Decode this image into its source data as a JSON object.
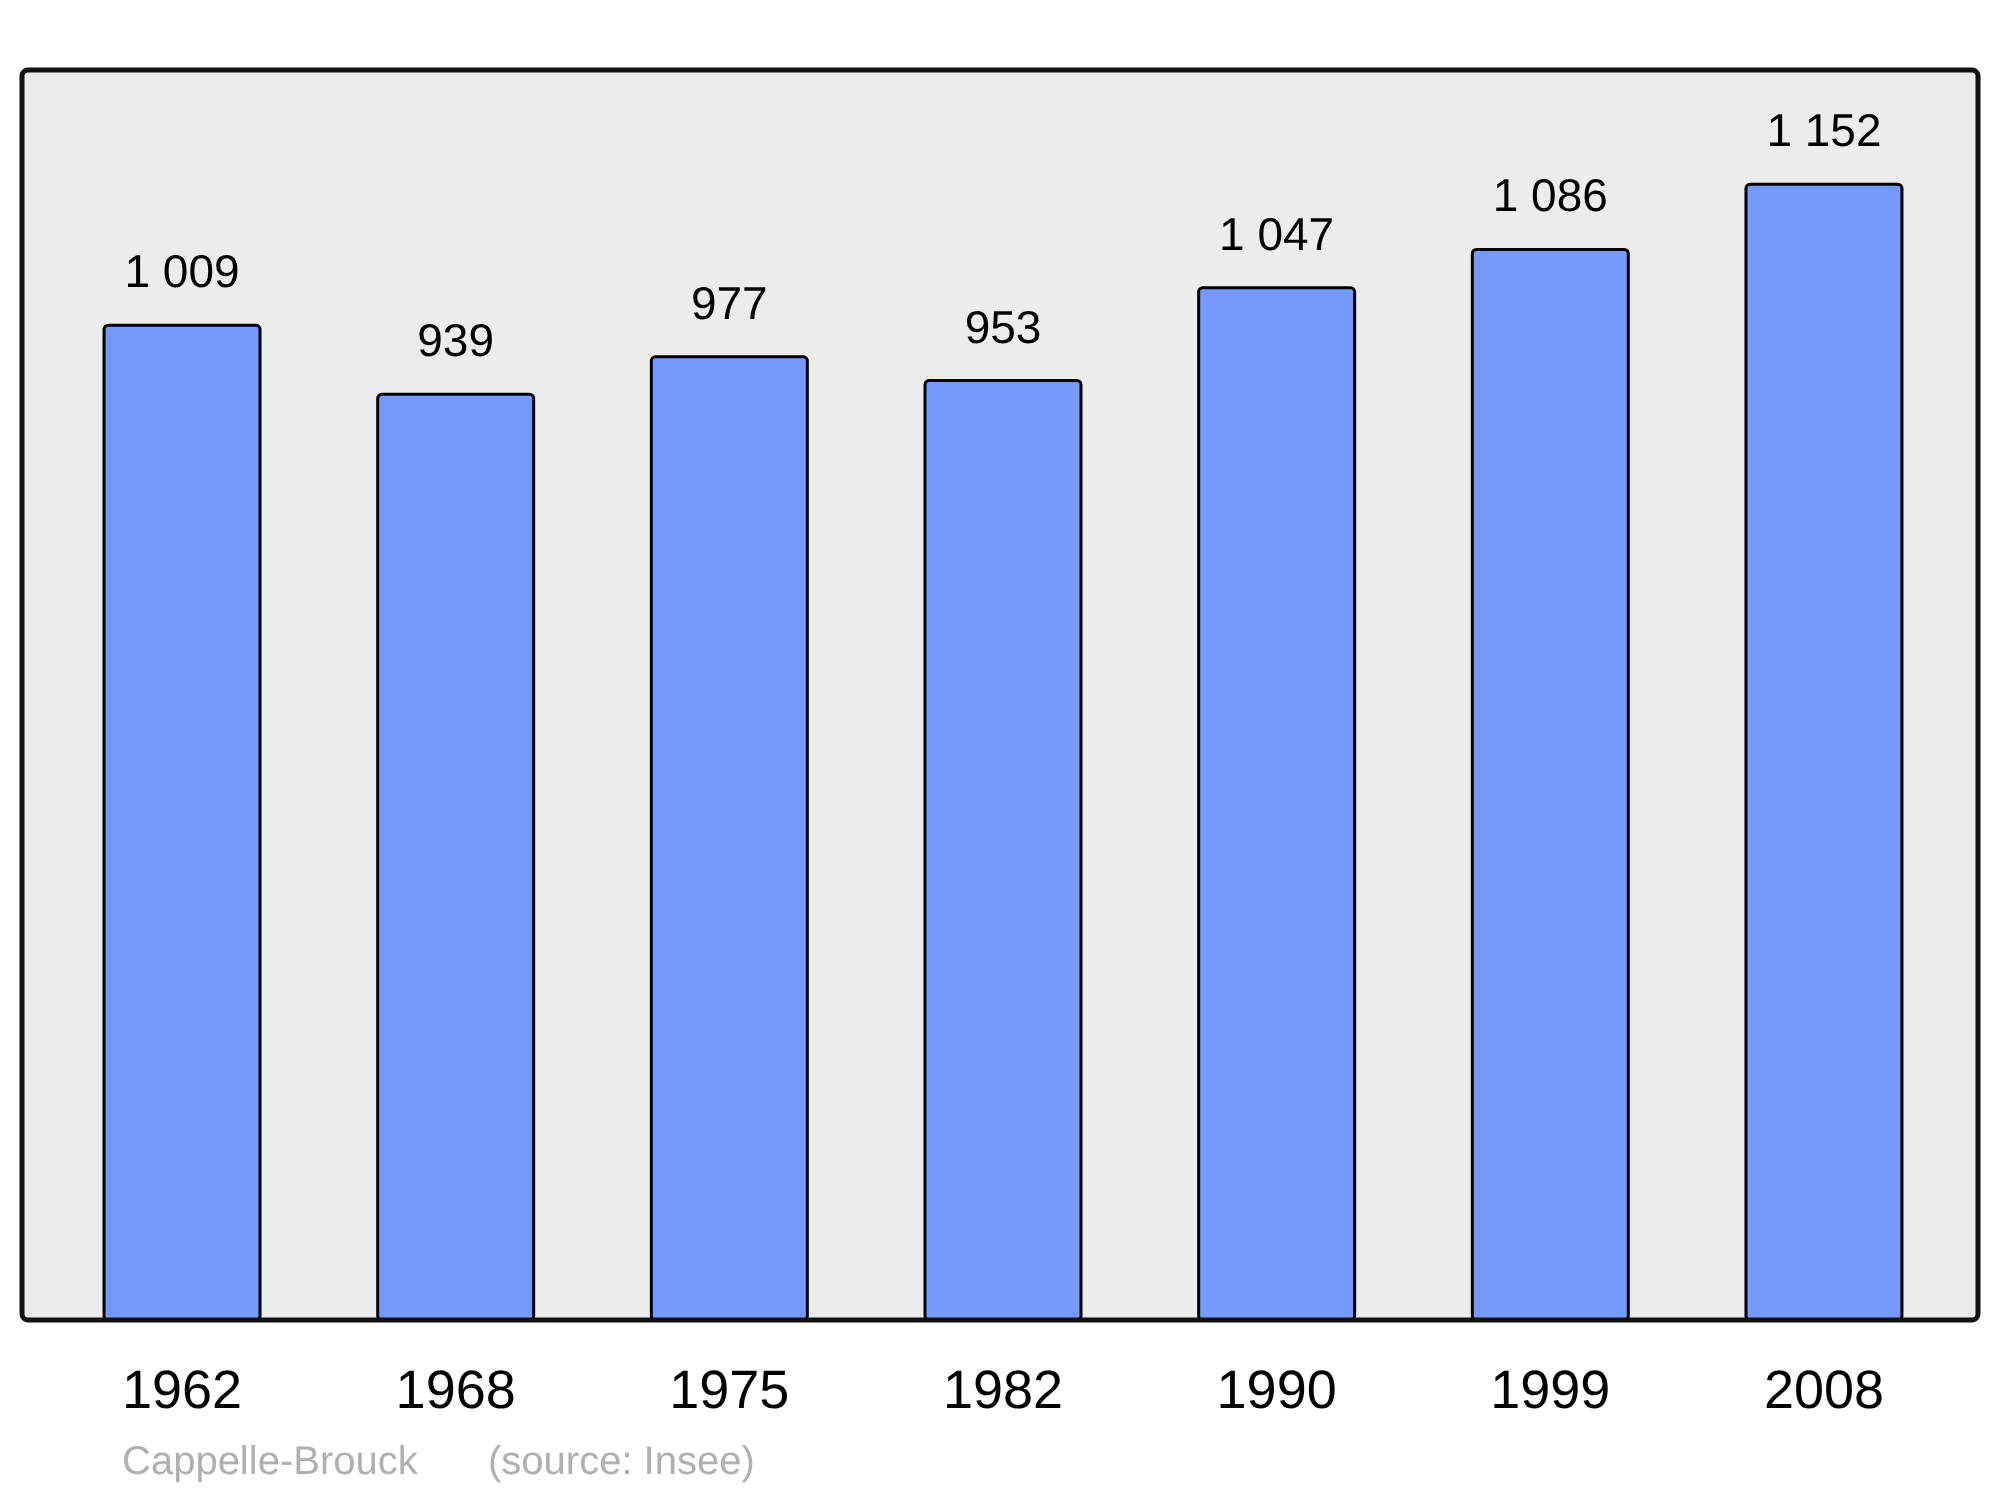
{
  "chart_data": {
    "type": "bar",
    "title": "Cappelle-Brouck",
    "annotations": [
      "(source: Insee)"
    ],
    "categories": [
      "1962",
      "1968",
      "1975",
      "1982",
      "1990",
      "1999",
      "2008"
    ],
    "values": [
      1009,
      939,
      977,
      953,
      1047,
      1086,
      1152
    ],
    "value_labels": [
      "1 009",
      "939",
      "977",
      "953",
      "1 047",
      "1 086",
      "1 152"
    ],
    "color": "#7499ff",
    "ylim": [
      0,
      1268
    ],
    "tick_labels": "x"
  }
}
